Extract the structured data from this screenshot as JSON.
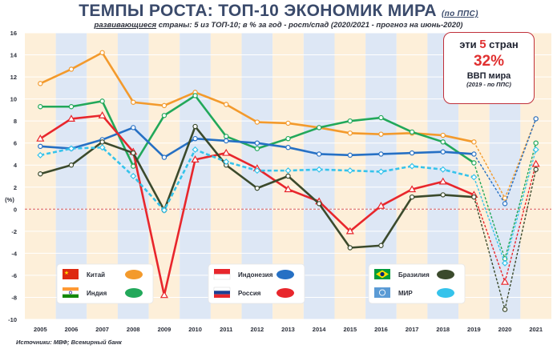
{
  "title_main": "ТЕМПЫ РОСТА: ТОП-10 ЭКОНОМИК МИРА",
  "title_note": "(по ППС)",
  "subtitle_underlined": "развивающиеся",
  "subtitle_rest": " страны: 5 из ТОП-10; в % за год - рост/спад (2020/2021 - прогноз на июнь-2020)",
  "source": "Источники: МВФ; Всемирный банк",
  "callout": {
    "line1_pre": "эти ",
    "line1_num": "5",
    "line1_post": " стран",
    "line2": "32%",
    "line3": "ВВП мира",
    "line4": "(2019 - по ППС)"
  },
  "colors": {
    "China": "#f39a2c",
    "India": "#22a85a",
    "Indonesia": "#2670c4",
    "Russia": "#e8262c",
    "Brazil": "#3b4a2c",
    "World": "#35c3eb",
    "band_blue": "#dde7f5",
    "band_peach": "#fdefd9",
    "zero_line": "#d85a5a"
  },
  "chart_data": {
    "type": "line",
    "x": [
      "2005",
      "2006",
      "2007",
      "2008",
      "2009",
      "2010",
      "2011",
      "2012",
      "2013",
      "2014",
      "2015",
      "2016",
      "2017",
      "2018",
      "2019",
      "2020",
      "2021"
    ],
    "ylim": [
      -10,
      16
    ],
    "yticks": [
      -10,
      -8,
      -6,
      -4,
      -2,
      0,
      2,
      4,
      6,
      8,
      10,
      12,
      14,
      16
    ],
    "ylabel": "(%)",
    "grid": true,
    "forecast_from": "2020",
    "series": [
      {
        "name": "Китай",
        "key": "China",
        "values": [
          11.4,
          12.7,
          14.2,
          9.7,
          9.4,
          10.6,
          9.5,
          7.9,
          7.8,
          7.4,
          6.9,
          6.8,
          6.9,
          6.7,
          6.1,
          1.0,
          8.2
        ],
        "style": "solid"
      },
      {
        "name": "Индия",
        "key": "India",
        "values": [
          9.3,
          9.3,
          9.8,
          3.9,
          8.5,
          10.3,
          6.6,
          5.5,
          6.4,
          7.4,
          8.0,
          8.3,
          7.0,
          6.1,
          4.2,
          -4.5,
          6.0
        ],
        "style": "solid"
      },
      {
        "name": "Индонезия",
        "key": "Indonesia",
        "values": [
          5.7,
          5.5,
          6.3,
          7.4,
          4.7,
          6.4,
          6.2,
          6.0,
          5.6,
          5.0,
          4.9,
          5.0,
          5.1,
          5.2,
          5.0,
          0.5,
          8.2
        ],
        "style": "solid"
      },
      {
        "name": "Россия",
        "key": "Russia",
        "values": [
          6.4,
          8.2,
          8.5,
          5.2,
          -7.8,
          4.5,
          5.1,
          3.7,
          1.8,
          0.7,
          -2.0,
          0.3,
          1.8,
          2.5,
          1.3,
          -6.6,
          4.1
        ],
        "style": "solid"
      },
      {
        "name": "Бразилия",
        "key": "Brazil",
        "values": [
          3.2,
          4.0,
          6.1,
          5.1,
          -0.1,
          7.5,
          4.0,
          1.9,
          3.0,
          0.5,
          -3.5,
          -3.3,
          1.1,
          1.3,
          1.1,
          -9.1,
          3.6
        ],
        "style": "solid"
      },
      {
        "name": "МИР",
        "key": "World",
        "values": [
          4.9,
          5.5,
          5.6,
          3.0,
          -0.1,
          5.4,
          4.3,
          3.5,
          3.5,
          3.6,
          3.5,
          3.4,
          3.9,
          3.6,
          2.9,
          -4.9,
          5.4
        ],
        "style": "dashed"
      }
    ]
  }
}
